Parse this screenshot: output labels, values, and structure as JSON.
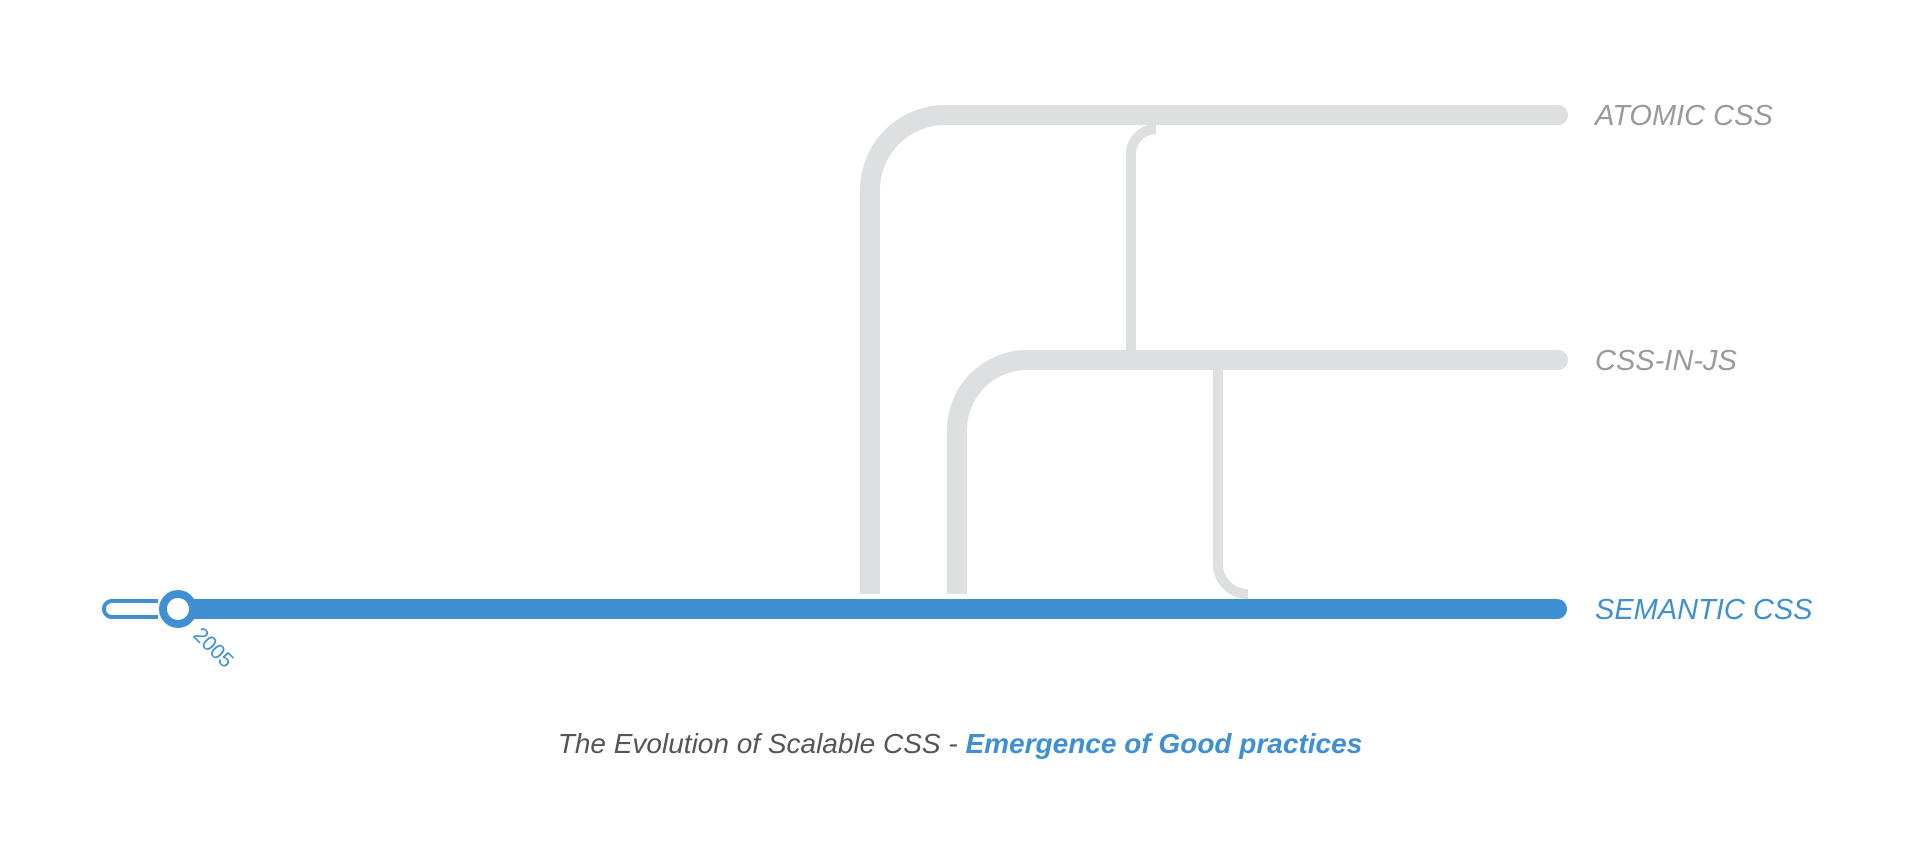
{
  "branches": [
    {
      "id": "atomic",
      "label": "ATOMIC CSS",
      "color": "#9a9a9a"
    },
    {
      "id": "cssinjs",
      "label": "CSS-IN-JS",
      "color": "#9a9a9a"
    },
    {
      "id": "semantic",
      "label": "SEMANTIC CSS",
      "color": "#3f8fd3"
    }
  ],
  "colors": {
    "accent": "#3f8fd3",
    "branch_line": "#dedfe1",
    "caption_text": "#555555"
  },
  "timeline": {
    "current_year": "2005"
  },
  "caption": {
    "text": "The Evolution of Scalable CSS - ",
    "highlight": "Emergence of Good practices"
  }
}
